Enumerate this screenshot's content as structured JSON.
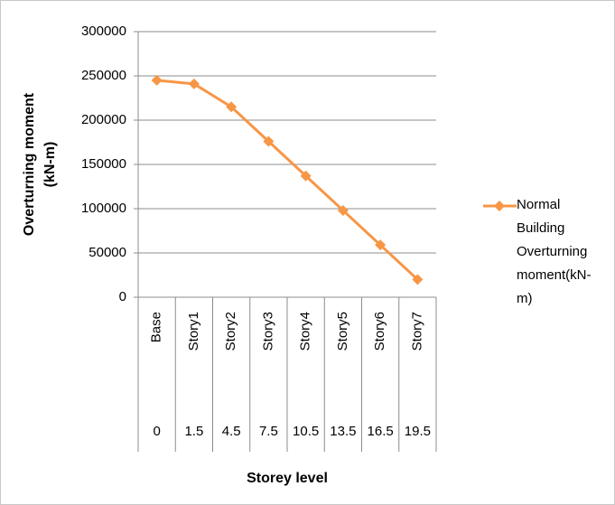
{
  "chart_data": {
    "type": "line",
    "y_label": [
      "Overturning moment",
      "(kN-m)"
    ],
    "x_label": "Storey level",
    "categories": [
      "Base",
      "Story1",
      "Story2",
      "Story3",
      "Story4",
      "Story5",
      "Story6",
      "Story7"
    ],
    "category_levels": [
      0,
      1.5,
      4.5,
      7.5,
      10.5,
      13.5,
      16.5,
      19.5
    ],
    "series": [
      {
        "name": "Normal Building Overturning moment(kN-m)",
        "color": "#f79646",
        "values": [
          245000,
          241000,
          215000,
          176000,
          137000,
          98000,
          59000,
          20000
        ]
      }
    ],
    "ylim": [
      0,
      300000
    ],
    "yticks": [
      0,
      50000,
      100000,
      150000,
      200000,
      250000,
      300000
    ],
    "grid": true,
    "legend": "right"
  }
}
